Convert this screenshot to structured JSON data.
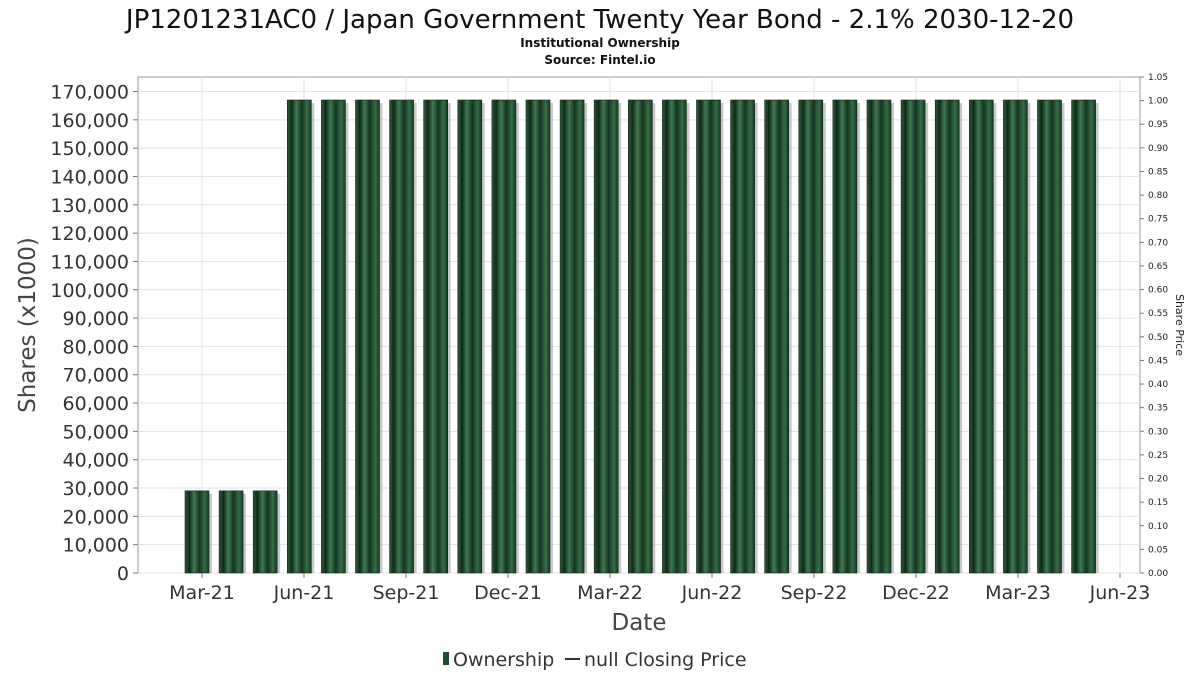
{
  "chart_data": {
    "type": "bar",
    "title": "JP1201231AC0 / Japan Government Twenty Year Bond - 2.1% 2030-12-20",
    "subtitle": "Institutional Ownership",
    "source": "Source: Fintel.io",
    "xlabel": "Date",
    "ylabel": "Shares (x1000)",
    "y2label": "Share Price",
    "ylim": [
      0,
      170000
    ],
    "y_ticks": [
      "0",
      "10,000",
      "20,000",
      "30,000",
      "40,000",
      "50,000",
      "60,000",
      "70,000",
      "80,000",
      "90,000",
      "100,000",
      "110,000",
      "120,000",
      "130,000",
      "140,000",
      "150,000",
      "160,000",
      "170,000"
    ],
    "y2lim": [
      0,
      1.05
    ],
    "y2_ticks": [
      "0.00",
      "0.05",
      "0.10",
      "0.15",
      "0.20",
      "0.25",
      "0.30",
      "0.35",
      "0.40",
      "0.45",
      "0.50",
      "0.55",
      "0.60",
      "0.65",
      "0.70",
      "0.75",
      "0.80",
      "0.85",
      "0.90",
      "0.95",
      "1.00",
      "1.05"
    ],
    "x_ticks": [
      "Mar-21",
      "Jun-21",
      "Sep-21",
      "Dec-21",
      "Mar-22",
      "Jun-22",
      "Sep-22",
      "Dec-22",
      "Mar-23",
      "Jun-23"
    ],
    "grid": true,
    "legend_position": "bottom",
    "series": [
      {
        "name": "Ownership",
        "color": "#1e4a2c",
        "values": [
          29000,
          29000,
          29000,
          167000,
          167000,
          167000,
          167000,
          167000,
          167000,
          167000,
          167000,
          167000,
          167000,
          167000,
          167000,
          167000,
          167000,
          167000,
          167000,
          167000,
          167000,
          167000,
          167000,
          167000,
          167000,
          167000,
          167000
        ]
      }
    ],
    "legend": [
      {
        "label": "Ownership",
        "marker": "bar",
        "color": "#1e4a2c"
      },
      {
        "label": "null Closing Price",
        "marker": "line",
        "color": "#333333"
      }
    ]
  }
}
